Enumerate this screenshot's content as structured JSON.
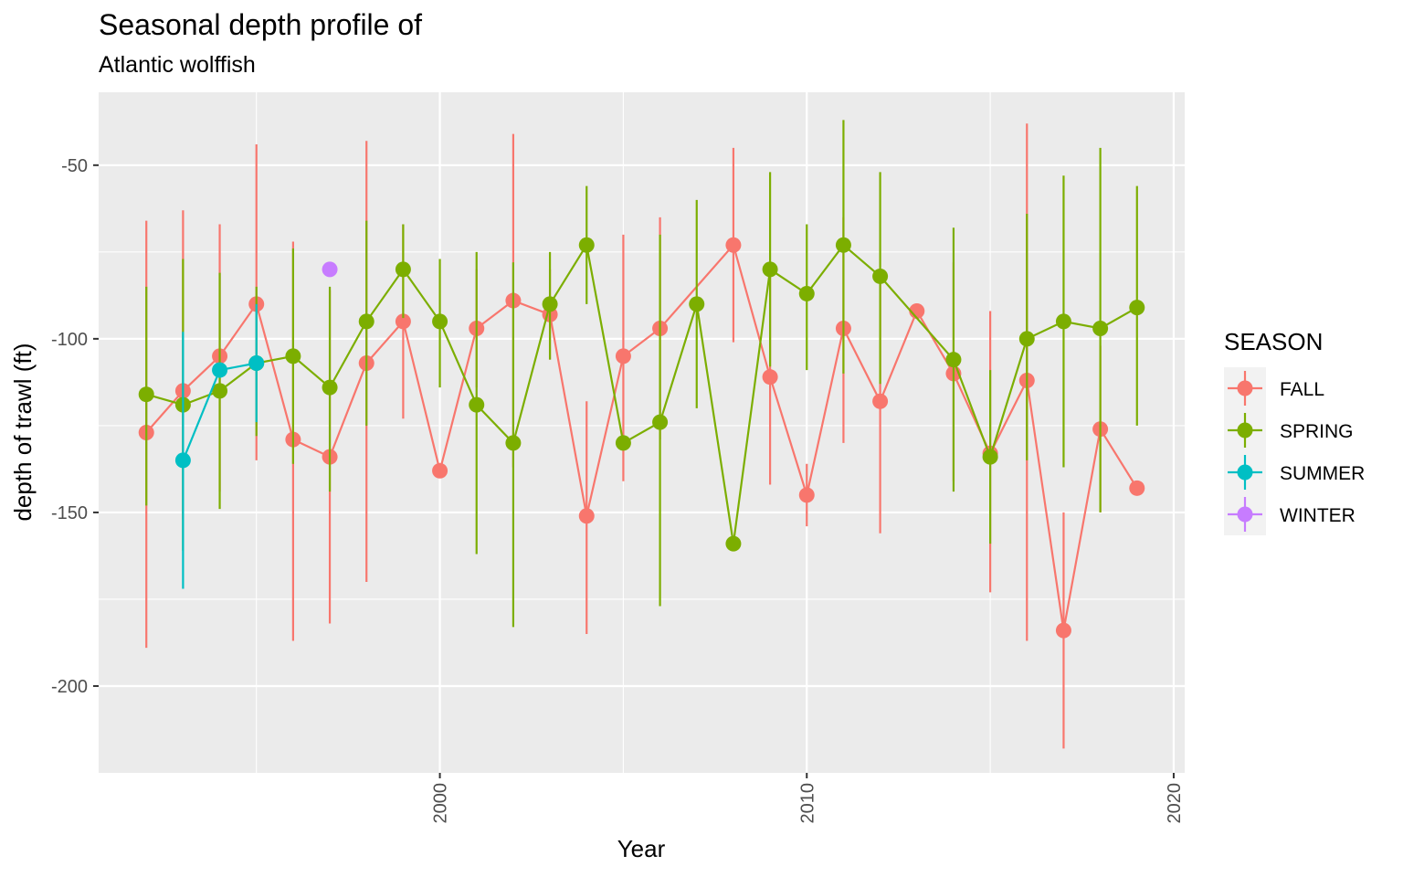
{
  "chart_data": {
    "type": "line",
    "title": "Seasonal depth profile of",
    "subtitle": "Atlantic wolffish",
    "xlabel": "Year",
    "ylabel": "depth of trawl (ft)",
    "xlim": [
      1990.7,
      2020.3
    ],
    "ylim": [
      -225,
      -29
    ],
    "x_ticks": [
      2000,
      2010,
      2020
    ],
    "y_ticks": [
      -50,
      -100,
      -150,
      -200
    ],
    "x_tick_labels": [
      "2000",
      "2010",
      "2020"
    ],
    "y_tick_labels": [
      "-50",
      "-100",
      "-150",
      "-200"
    ],
    "grid": true,
    "legend_title": "SEASON",
    "legend_position": "right",
    "series": [
      {
        "name": "FALL",
        "color": "#F8766D",
        "points": [
          {
            "x": 1992,
            "y": -127,
            "lo": -189,
            "hi": -66
          },
          {
            "x": 1993,
            "y": -115,
            "lo": -152,
            "hi": -63
          },
          {
            "x": 1994,
            "y": -105,
            "lo": -144,
            "hi": -67
          },
          {
            "x": 1995,
            "y": -90,
            "lo": -135,
            "hi": -44
          },
          {
            "x": 1996,
            "y": -129,
            "lo": -187,
            "hi": -72
          },
          {
            "x": 1997,
            "y": -134,
            "lo": -182,
            "hi": -86
          },
          {
            "x": 1998,
            "y": -107,
            "lo": -170,
            "hi": -43
          },
          {
            "x": 1999,
            "y": -95,
            "lo": -123,
            "hi": -67
          },
          {
            "x": 2000,
            "y": -138,
            "lo": -138,
            "hi": -138
          },
          {
            "x": 2001,
            "y": -97,
            "lo": -114,
            "hi": -80
          },
          {
            "x": 2002,
            "y": -89,
            "lo": -137,
            "hi": -41
          },
          {
            "x": 2003,
            "y": -93,
            "lo": -106,
            "hi": -80
          },
          {
            "x": 2004,
            "y": -151,
            "lo": -185,
            "hi": -118
          },
          {
            "x": 2005,
            "y": -105,
            "lo": -141,
            "hi": -70
          },
          {
            "x": 2006,
            "y": -97,
            "lo": -129,
            "hi": -65
          },
          {
            "x": 2008,
            "y": -73,
            "lo": -101,
            "hi": -45
          },
          {
            "x": 2009,
            "y": -111,
            "lo": -142,
            "hi": -80
          },
          {
            "x": 2010,
            "y": -145,
            "lo": -154,
            "hi": -136
          },
          {
            "x": 2011,
            "y": -97,
            "lo": -130,
            "hi": -65
          },
          {
            "x": 2012,
            "y": -118,
            "lo": -156,
            "hi": -80
          },
          {
            "x": 2013,
            "y": -92,
            "lo": -92,
            "hi": -92
          },
          {
            "x": 2014,
            "y": -110,
            "lo": -141,
            "hi": -78
          },
          {
            "x": 2015,
            "y": -133,
            "lo": -173,
            "hi": -92
          },
          {
            "x": 2016,
            "y": -112,
            "lo": -187,
            "hi": -38
          },
          {
            "x": 2017,
            "y": -184,
            "lo": -218,
            "hi": -150
          },
          {
            "x": 2018,
            "y": -126,
            "lo": -150,
            "hi": -102
          },
          {
            "x": 2019,
            "y": -143,
            "lo": -143,
            "hi": -143
          }
        ]
      },
      {
        "name": "SPRING",
        "color": "#7CAE00",
        "points": [
          {
            "x": 1992,
            "y": -116,
            "lo": -148,
            "hi": -85
          },
          {
            "x": 1993,
            "y": -119,
            "lo": -161,
            "hi": -77
          },
          {
            "x": 1994,
            "y": -115,
            "lo": -149,
            "hi": -81
          },
          {
            "x": 1995,
            "y": -107,
            "lo": -128,
            "hi": -85
          },
          {
            "x": 1996,
            "y": -105,
            "lo": -136,
            "hi": -74
          },
          {
            "x": 1997,
            "y": -114,
            "lo": -144,
            "hi": -85
          },
          {
            "x": 1998,
            "y": -95,
            "lo": -125,
            "hi": -66
          },
          {
            "x": 1999,
            "y": -80,
            "lo": -94,
            "hi": -67
          },
          {
            "x": 2000,
            "y": -95,
            "lo": -114,
            "hi": -77
          },
          {
            "x": 2001,
            "y": -119,
            "lo": -162,
            "hi": -75
          },
          {
            "x": 2002,
            "y": -130,
            "lo": -183,
            "hi": -78
          },
          {
            "x": 2003,
            "y": -90,
            "lo": -106,
            "hi": -75
          },
          {
            "x": 2004,
            "y": -73,
            "lo": -90,
            "hi": -56
          },
          {
            "x": 2005,
            "y": -130,
            "lo": -130,
            "hi": -130
          },
          {
            "x": 2006,
            "y": -124,
            "lo": -177,
            "hi": -70
          },
          {
            "x": 2007,
            "y": -90,
            "lo": -120,
            "hi": -60
          },
          {
            "x": 2008,
            "y": -159,
            "lo": -159,
            "hi": -159
          },
          {
            "x": 2009,
            "y": -80,
            "lo": -108,
            "hi": -52
          },
          {
            "x": 2010,
            "y": -87,
            "lo": -109,
            "hi": -67
          },
          {
            "x": 2011,
            "y": -73,
            "lo": -110,
            "hi": -37
          },
          {
            "x": 2012,
            "y": -82,
            "lo": -113,
            "hi": -52
          },
          {
            "x": 2014,
            "y": -106,
            "lo": -144,
            "hi": -68
          },
          {
            "x": 2015,
            "y": -134,
            "lo": -159,
            "hi": -109
          },
          {
            "x": 2016,
            "y": -100,
            "lo": -135,
            "hi": -64
          },
          {
            "x": 2017,
            "y": -95,
            "lo": -137,
            "hi": -53
          },
          {
            "x": 2018,
            "y": -97,
            "lo": -150,
            "hi": -45
          },
          {
            "x": 2019,
            "y": -91,
            "lo": -125,
            "hi": -56
          }
        ]
      },
      {
        "name": "SUMMER",
        "color": "#00BFC4",
        "points": [
          {
            "x": 1993,
            "y": -135,
            "lo": -172,
            "hi": -98
          },
          {
            "x": 1994,
            "y": -109,
            "lo": -109,
            "hi": -109
          },
          {
            "x": 1995,
            "y": -107,
            "lo": -124,
            "hi": -90
          }
        ]
      },
      {
        "name": "WINTER",
        "color": "#C77CFF",
        "points": [
          {
            "x": 1997,
            "y": -80,
            "lo": -80,
            "hi": -80
          }
        ]
      }
    ]
  }
}
